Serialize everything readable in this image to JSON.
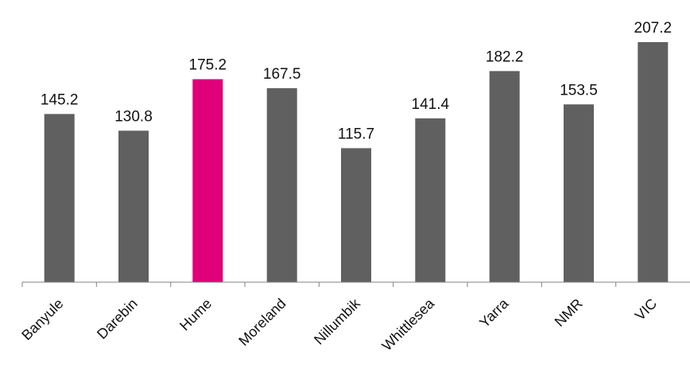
{
  "chart_data": {
    "type": "bar",
    "title": "",
    "xlabel": "",
    "ylabel": "",
    "categories": [
      "Banyule",
      "Darebin",
      "Hume",
      "Moreland",
      "Nillumbik",
      "Whittlesea",
      "Yarra",
      "NMR",
      "VIC"
    ],
    "values": [
      145.2,
      130.8,
      175.2,
      167.5,
      115.7,
      141.4,
      182.2,
      153.5,
      207.2
    ],
    "data_labels": [
      "145.2",
      "130.8",
      "175.2",
      "167.5",
      "115.7",
      "141.4",
      "182.2",
      "153.5",
      "207.2"
    ],
    "highlight_index": 2,
    "ylim": [
      0,
      207.2
    ],
    "grid": false,
    "legend": "none",
    "colors": {
      "bar": "#606060",
      "highlight": "#e0007a",
      "axis": "#808080"
    }
  }
}
